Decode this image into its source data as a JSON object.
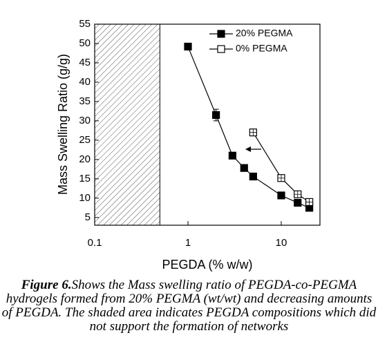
{
  "chart_data": {
    "type": "line",
    "x_label": "PEGDA (% w/w)",
    "y_label": "Mass Swelling Ratio (g/g)",
    "log_x": true,
    "xlim": [
      0.1,
      26
    ],
    "xticks": [
      0.1,
      1,
      10
    ],
    "ylim": [
      3,
      55
    ],
    "yticks": [
      5,
      10,
      15,
      20,
      25,
      30,
      35,
      40,
      45,
      50,
      55
    ],
    "shaded_range": [
      0.1,
      0.5
    ],
    "legend": "upper right",
    "series": [
      {
        "name": "20% PEGMA",
        "color": "#000000",
        "marker": "filled-square",
        "x": [
          1,
          2,
          3,
          4,
          5,
          10,
          15,
          20
        ],
        "values": [
          49.2,
          31.5,
          21,
          17.8,
          15.6,
          10.7,
          8.8,
          7.5
        ],
        "errors": [
          null,
          1.5,
          null,
          null,
          null,
          null,
          null,
          null
        ]
      },
      {
        "name": "0% PEGMA",
        "color": "#000000",
        "marker": "open-square",
        "x": [
          5,
          10,
          15,
          20
        ],
        "values": [
          27,
          15.2,
          11,
          9
        ],
        "errors": [
          null,
          null,
          null,
          null
        ]
      }
    ]
  },
  "caption": {
    "label": "Figure 6.",
    "text": "Shows the Mass swelling ratio of PEGDA-co-PEGMA hydrogels formed from 20% PEGMA (wt/wt) and decreasing amounts of PEGDA. The shaded area indicates PEGDA compositions which did not support the formation of networks"
  }
}
